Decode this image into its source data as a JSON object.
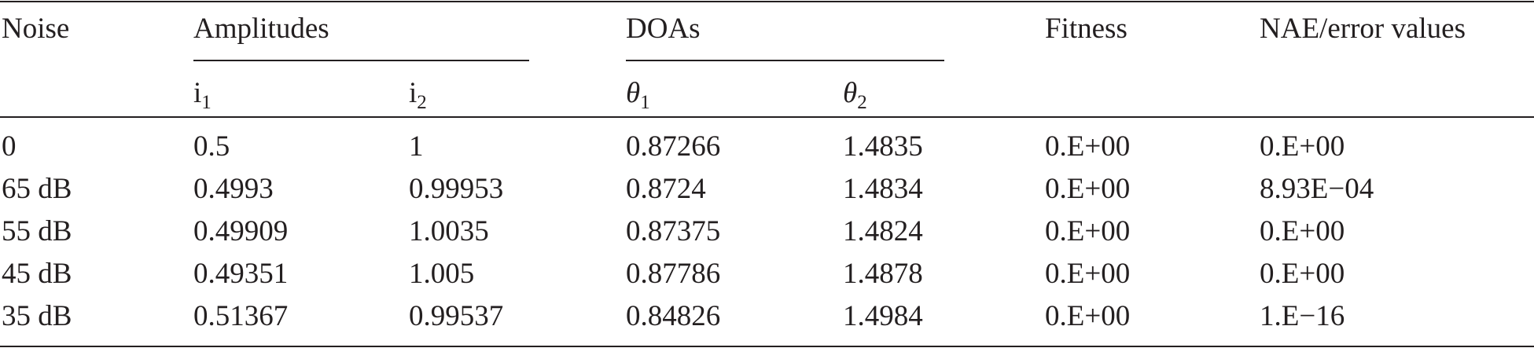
{
  "table": {
    "header": [
      "Noise",
      "Amplitudes",
      "DOAs",
      "Fitness",
      "NAE/error values"
    ],
    "subheader": [
      {
        "base": "i",
        "sub": "1"
      },
      {
        "base": "i",
        "sub": "2"
      },
      {
        "base": "θ",
        "sub": "1"
      },
      {
        "base": "θ",
        "sub": "2"
      }
    ],
    "rows": [
      [
        "0",
        "0.5",
        "1",
        "0.87266",
        "1.4835",
        "0.E+00",
        "0.E+00"
      ],
      [
        "65 dB",
        "0.4993",
        "0.99953",
        "0.8724",
        "1.4834",
        "0.E+00",
        "8.93E−04"
      ],
      [
        "55 dB",
        "0.49909",
        "1.0035",
        "0.87375",
        "1.4824",
        "0.E+00",
        "0.E+00"
      ],
      [
        "45 dB",
        "0.49351",
        "1.005",
        "0.87786",
        "1.4878",
        "0.E+00",
        "0.E+00"
      ],
      [
        "35 dB",
        "0.51367",
        "0.99537",
        "0.84826",
        "1.4984",
        "0.E+00",
        "1.E−16"
      ]
    ]
  }
}
